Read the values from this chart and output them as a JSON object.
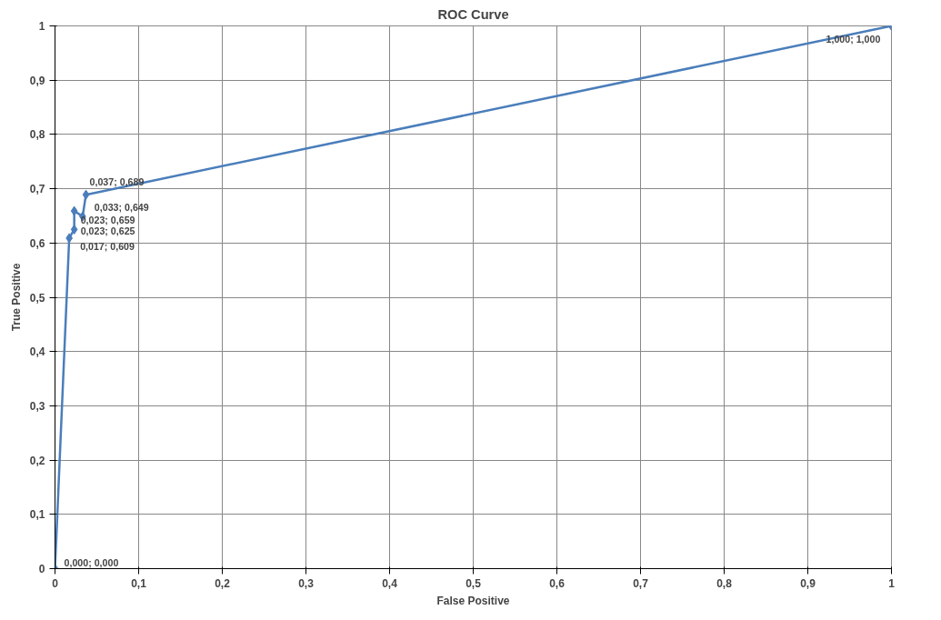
{
  "chart_data": {
    "type": "line",
    "title": "ROC Curve",
    "xlabel": "False Positive",
    "ylabel": "True Positive",
    "x": [
      0,
      0.017,
      0.023,
      0.023,
      0.033,
      0.037,
      1
    ],
    "series": [
      {
        "color": "#4a7ebb",
        "values": [
          0,
          0.609,
          0.625,
          0.659,
          0.649,
          0.689,
          1
        ],
        "value_labels": [
          "0,000; 0,000",
          "0,017; 0,609",
          "0,023; 0,625",
          "0,023; 0,659",
          "0,033; 0,649",
          "0,037; 0,689",
          "1,000; 1,000"
        ]
      }
    ],
    "xlim": [
      0,
      1
    ],
    "ylim": [
      0,
      1
    ],
    "xticks": [
      0,
      {
        "value": 0.1,
        "label": "0,1"
      },
      {
        "value": 0.2,
        "label": "0,2"
      },
      {
        "value": 0.3,
        "label": "0,3"
      },
      {
        "value": 0.4,
        "label": "0,4"
      },
      {
        "value": 0.5,
        "label": "0,5"
      },
      {
        "value": 0.6,
        "label": "0,6"
      },
      {
        "value": 0.7,
        "label": "0,7"
      },
      {
        "value": 0.8,
        "label": "0,8"
      },
      {
        "value": 0.9,
        "label": "0,9"
      },
      1
    ],
    "yticks": [
      0,
      {
        "value": 0.1,
        "label": "0,1"
      },
      {
        "value": 0.2,
        "label": "0,2"
      },
      {
        "value": 0.3,
        "label": "0,3"
      },
      {
        "value": 0.4,
        "label": "0,4"
      },
      {
        "value": 0.5,
        "label": "0,5"
      },
      {
        "value": 0.6,
        "label": "0,6"
      },
      {
        "value": 0.7,
        "label": "0,7"
      },
      {
        "value": 0.8,
        "label": "0,8"
      },
      {
        "value": 0.9,
        "label": "0,9"
      },
      1
    ],
    "grid": true,
    "marker": "diamond",
    "line_style": "solid"
  }
}
